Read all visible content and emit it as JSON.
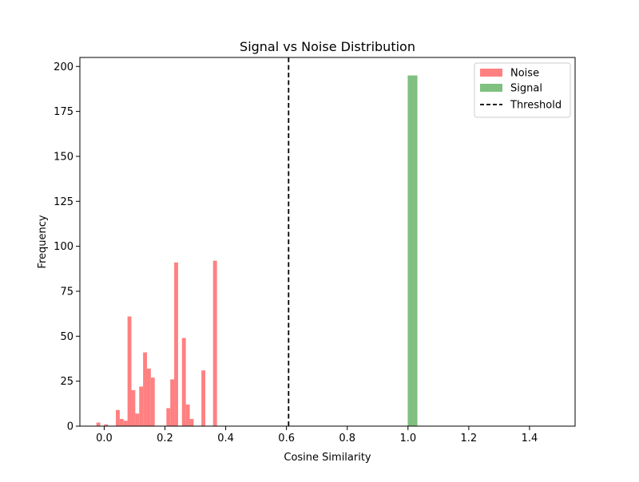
{
  "chart_data": {
    "type": "bar",
    "title": "Signal vs Noise Distribution",
    "xlabel": "Cosine Similarity",
    "ylabel": "Frequency",
    "xlim": [
      -0.08,
      1.55
    ],
    "ylim": [
      0,
      205
    ],
    "xticks": [
      0.0,
      0.2,
      0.4,
      0.6,
      0.8,
      1.0,
      1.2,
      1.4
    ],
    "xtick_labels": [
      "0.0",
      "0.2",
      "0.4",
      "0.6",
      "0.8",
      "1.0",
      "1.2",
      "1.4"
    ],
    "yticks": [
      0,
      25,
      50,
      75,
      100,
      125,
      150,
      175,
      200
    ],
    "ytick_labels": [
      "0",
      "25",
      "50",
      "75",
      "100",
      "125",
      "150",
      "175",
      "200"
    ],
    "grid": false,
    "legend": {
      "placement": "top-right",
      "entries": [
        {
          "label": "Noise",
          "kind": "patch",
          "color": "#ff8080"
        },
        {
          "label": "Signal",
          "kind": "patch",
          "color": "#80c080"
        },
        {
          "label": "Threshold",
          "kind": "dashed-line",
          "color": "#000000"
        }
      ]
    },
    "series": [
      {
        "name": "Noise",
        "color": "#ff8080",
        "bins": [
          {
            "x0": -0.0256,
            "x1": -0.0128,
            "value": 2
          },
          {
            "x0": -0.0128,
            "x1": 0.0,
            "value": 0
          },
          {
            "x0": 0.0,
            "x1": 0.0128,
            "value": 1
          },
          {
            "x0": 0.0128,
            "x1": 0.0256,
            "value": 0
          },
          {
            "x0": 0.0256,
            "x1": 0.0384,
            "value": 0
          },
          {
            "x0": 0.0384,
            "x1": 0.0512,
            "value": 9
          },
          {
            "x0": 0.0512,
            "x1": 0.064,
            "value": 4
          },
          {
            "x0": 0.064,
            "x1": 0.0768,
            "value": 3
          },
          {
            "x0": 0.0768,
            "x1": 0.0896,
            "value": 61
          },
          {
            "x0": 0.0896,
            "x1": 0.1024,
            "value": 20
          },
          {
            "x0": 0.1024,
            "x1": 0.1152,
            "value": 7
          },
          {
            "x0": 0.1152,
            "x1": 0.128,
            "value": 22
          },
          {
            "x0": 0.128,
            "x1": 0.1408,
            "value": 41
          },
          {
            "x0": 0.1408,
            "x1": 0.1536,
            "value": 32
          },
          {
            "x0": 0.1536,
            "x1": 0.1664,
            "value": 27
          },
          {
            "x0": 0.1664,
            "x1": 0.1792,
            "value": 0
          },
          {
            "x0": 0.1792,
            "x1": 0.192,
            "value": 0
          },
          {
            "x0": 0.192,
            "x1": 0.2048,
            "value": 0
          },
          {
            "x0": 0.2048,
            "x1": 0.2176,
            "value": 10
          },
          {
            "x0": 0.2176,
            "x1": 0.2304,
            "value": 26
          },
          {
            "x0": 0.2304,
            "x1": 0.2432,
            "value": 91
          },
          {
            "x0": 0.2432,
            "x1": 0.256,
            "value": 0
          },
          {
            "x0": 0.256,
            "x1": 0.2688,
            "value": 49
          },
          {
            "x0": 0.2688,
            "x1": 0.2816,
            "value": 12
          },
          {
            "x0": 0.2816,
            "x1": 0.2944,
            "value": 4
          },
          {
            "x0": 0.2944,
            "x1": 0.3072,
            "value": 0
          },
          {
            "x0": 0.3072,
            "x1": 0.32,
            "value": 0
          },
          {
            "x0": 0.32,
            "x1": 0.3328,
            "value": 31
          },
          {
            "x0": 0.3328,
            "x1": 0.3456,
            "value": 0
          },
          {
            "x0": 0.3456,
            "x1": 0.3584,
            "value": 0
          },
          {
            "x0": 0.3584,
            "x1": 0.3712,
            "value": 92
          }
        ]
      },
      {
        "name": "Signal",
        "color": "#80c080",
        "bins": [
          {
            "x0": 0.999,
            "x1": 1.031,
            "value": 195
          }
        ]
      }
    ],
    "threshold": {
      "name": "Threshold",
      "x": 0.607,
      "color": "#000000",
      "style": "dashed"
    }
  }
}
